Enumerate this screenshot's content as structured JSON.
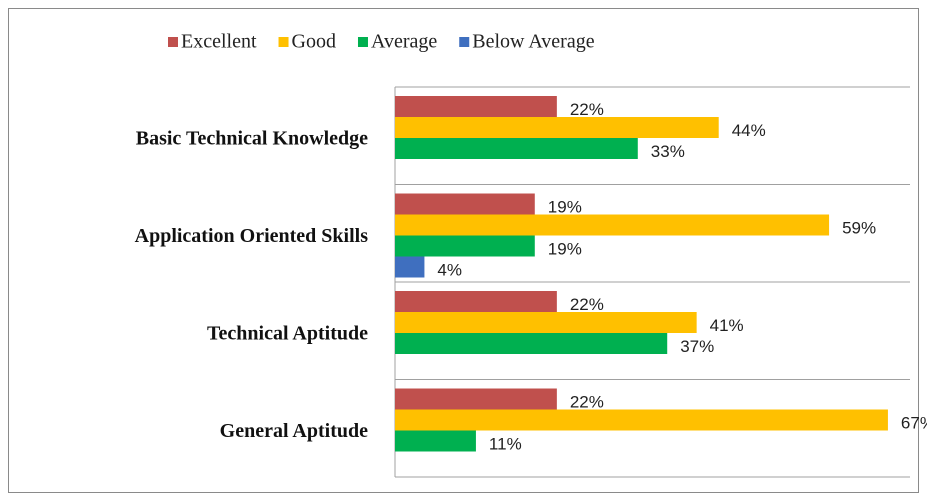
{
  "chart_data": {
    "type": "bar",
    "orientation": "horizontal",
    "categories": [
      "Basic Technical Knowledge",
      "Application Oriented Skills",
      "Technical Aptitude",
      "General Aptitude"
    ],
    "series": [
      {
        "name": "Excellent",
        "color": "#c0504d",
        "values": [
          22,
          19,
          22,
          22
        ],
        "value_labels": [
          "22%",
          "19%",
          "22%",
          "22%"
        ]
      },
      {
        "name": "Good",
        "color": "#ffc000",
        "values": [
          44,
          59,
          41,
          67
        ],
        "value_labels": [
          "44%",
          "59%",
          "41%",
          "67%"
        ]
      },
      {
        "name": "Average",
        "color": "#00b050",
        "values": [
          33,
          19,
          37,
          11
        ],
        "value_labels": [
          "33%",
          "19%",
          "37%",
          "11%"
        ]
      },
      {
        "name": "Below Average",
        "color": "#3f6fbf",
        "values": [
          null,
          4,
          null,
          null
        ],
        "value_labels": [
          null,
          "4%",
          null,
          null
        ]
      }
    ],
    "xlim": [
      0,
      70
    ],
    "legend": "top"
  }
}
